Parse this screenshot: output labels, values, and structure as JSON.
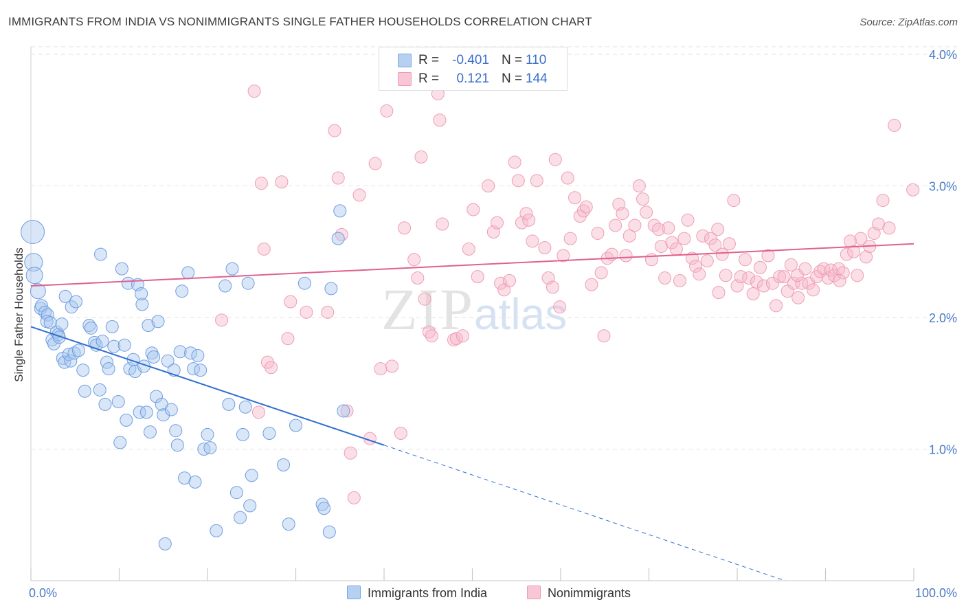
{
  "header": {
    "title": "IMMIGRANTS FROM INDIA VS NONIMMIGRANTS SINGLE FATHER HOUSEHOLDS CORRELATION CHART",
    "source": "Source: ZipAtlas.com"
  },
  "watermark": {
    "zip": "ZIP",
    "atlas": "atlas"
  },
  "legend": {
    "rows": [
      {
        "r_label": "R =",
        "r_value": "-0.401",
        "n_label": "N =",
        "n_value": "110",
        "color": "#a8c8f0"
      },
      {
        "r_label": "R =",
        "r_value": "0.121",
        "n_label": "N =",
        "n_value": "144",
        "color": "#f6b8ca"
      }
    ]
  },
  "bottom_legend": {
    "india": "Immigrants from India",
    "nonimm": "Nonimmigrants"
  },
  "chart_data": {
    "type": "scatter",
    "title": "IMMIGRANTS FROM INDIA VS NONIMMIGRANTS SINGLE FATHER HOUSEHOLDS CORRELATION CHART",
    "ylabel": "Single Father Households",
    "xlabel": "",
    "xlim": [
      0,
      100
    ],
    "ylim": [
      0,
      4.0
    ],
    "x_tick_labels": [
      "0.0%",
      "100.0%"
    ],
    "y_ticks": [
      1.0,
      2.0,
      3.0,
      4.0
    ],
    "y_tick_labels": [
      "1.0%",
      "2.0%",
      "3.0%",
      "4.0%"
    ],
    "grid": true,
    "colors": {
      "india": "#5b8fd9",
      "nonimm": "#ec8aaa",
      "india_line": "#2f6fd0",
      "nonimm_line": "#e0608e"
    },
    "series": [
      {
        "name": "Immigrants from India",
        "trend": {
          "x": [
            0,
            40,
            100
          ],
          "y": [
            1.93,
            1.03,
            -0.33
          ]
        },
        "points": [
          [
            0.2,
            2.65
          ],
          [
            0.3,
            2.42
          ],
          [
            0.4,
            2.32
          ],
          [
            0.8,
            2.2
          ],
          [
            1.1,
            2.07
          ],
          [
            1.2,
            2.09
          ],
          [
            1.6,
            2.04
          ],
          [
            1.9,
            2.02
          ],
          [
            1.8,
            1.97
          ],
          [
            2.2,
            1.96
          ],
          [
            2.4,
            1.83
          ],
          [
            2.6,
            1.8
          ],
          [
            2.9,
            1.89
          ],
          [
            3.1,
            1.87
          ],
          [
            3.2,
            1.85
          ],
          [
            3.5,
            1.95
          ],
          [
            3.6,
            1.69
          ],
          [
            3.8,
            1.66
          ],
          [
            3.9,
            2.16
          ],
          [
            4.3,
            1.72
          ],
          [
            4.5,
            1.67
          ],
          [
            4.6,
            2.08
          ],
          [
            4.9,
            1.73
          ],
          [
            5.1,
            2.12
          ],
          [
            5.4,
            1.75
          ],
          [
            5.9,
            1.6
          ],
          [
            6.1,
            1.44
          ],
          [
            6.6,
            1.94
          ],
          [
            6.8,
            1.92
          ],
          [
            7.2,
            1.81
          ],
          [
            7.4,
            1.79
          ],
          [
            7.8,
            1.45
          ],
          [
            7.9,
            2.48
          ],
          [
            8.1,
            1.82
          ],
          [
            8.4,
            1.34
          ],
          [
            8.6,
            1.66
          ],
          [
            8.8,
            1.61
          ],
          [
            9.2,
            1.93
          ],
          [
            9.4,
            1.78
          ],
          [
            9.9,
            1.36
          ],
          [
            10.1,
            1.05
          ],
          [
            10.3,
            2.37
          ],
          [
            10.6,
            1.79
          ],
          [
            10.8,
            1.22
          ],
          [
            11.0,
            2.26
          ],
          [
            11.2,
            1.61
          ],
          [
            11.6,
            1.68
          ],
          [
            11.8,
            1.59
          ],
          [
            12.1,
            2.25
          ],
          [
            12.3,
            1.28
          ],
          [
            12.6,
            2.1
          ],
          [
            12.5,
            2.18
          ],
          [
            12.8,
            1.63
          ],
          [
            13.1,
            1.28
          ],
          [
            13.3,
            1.94
          ],
          [
            13.5,
            1.13
          ],
          [
            13.7,
            1.73
          ],
          [
            13.9,
            1.7
          ],
          [
            14.2,
            1.4
          ],
          [
            14.4,
            1.97
          ],
          [
            14.8,
            1.34
          ],
          [
            15.0,
            1.26
          ],
          [
            15.2,
            0.28
          ],
          [
            15.5,
            1.67
          ],
          [
            15.9,
            1.3
          ],
          [
            16.2,
            1.6
          ],
          [
            16.4,
            1.14
          ],
          [
            16.6,
            1.03
          ],
          [
            16.9,
            1.74
          ],
          [
            17.1,
            2.2
          ],
          [
            17.4,
            0.78
          ],
          [
            17.8,
            2.34
          ],
          [
            18.1,
            1.73
          ],
          [
            18.4,
            1.61
          ],
          [
            18.6,
            0.75
          ],
          [
            18.9,
            1.71
          ],
          [
            19.2,
            1.6
          ],
          [
            19.6,
            1.0
          ],
          [
            20.0,
            1.11
          ],
          [
            20.3,
            1.01
          ],
          [
            21.0,
            0.38
          ],
          [
            22.0,
            2.24
          ],
          [
            22.4,
            1.34
          ],
          [
            22.8,
            2.37
          ],
          [
            23.3,
            0.67
          ],
          [
            23.7,
            0.48
          ],
          [
            24.0,
            1.11
          ],
          [
            24.3,
            1.32
          ],
          [
            24.6,
            2.26
          ],
          [
            24.8,
            0.57
          ],
          [
            25.0,
            0.8
          ],
          [
            27.0,
            1.12
          ],
          [
            28.6,
            0.88
          ],
          [
            29.2,
            0.43
          ],
          [
            30.0,
            1.18
          ],
          [
            31.0,
            2.26
          ],
          [
            33.0,
            0.58
          ],
          [
            33.2,
            0.55
          ],
          [
            33.8,
            0.37
          ],
          [
            34.0,
            2.22
          ],
          [
            34.8,
            2.6
          ],
          [
            35.0,
            2.81
          ],
          [
            35.4,
            1.29
          ]
        ]
      },
      {
        "name": "Nonimmigrants",
        "trend": {
          "x": [
            0,
            100
          ],
          "y": [
            2.24,
            2.56
          ]
        },
        "points": [
          [
            21.6,
            1.98
          ],
          [
            25.3,
            3.72
          ],
          [
            25.8,
            1.28
          ],
          [
            26.1,
            3.02
          ],
          [
            26.4,
            2.52
          ],
          [
            26.8,
            1.66
          ],
          [
            27.2,
            1.62
          ],
          [
            28.4,
            3.03
          ],
          [
            29.1,
            1.84
          ],
          [
            29.4,
            2.12
          ],
          [
            31.2,
            2.04
          ],
          [
            33.6,
            2.04
          ],
          [
            34.4,
            3.42
          ],
          [
            34.8,
            3.06
          ],
          [
            35.2,
            2.63
          ],
          [
            35.8,
            1.29
          ],
          [
            36.2,
            0.97
          ],
          [
            36.6,
            0.63
          ],
          [
            37.2,
            2.93
          ],
          [
            38.4,
            1.08
          ],
          [
            39.0,
            3.17
          ],
          [
            39.6,
            1.61
          ],
          [
            40.3,
            3.57
          ],
          [
            40.9,
            1.63
          ],
          [
            41.9,
            1.12
          ],
          [
            42.3,
            2.68
          ],
          [
            43.4,
            2.44
          ],
          [
            43.8,
            2.3
          ],
          [
            44.2,
            3.22
          ],
          [
            44.6,
            2.14
          ],
          [
            45.1,
            1.89
          ],
          [
            45.4,
            1.86
          ],
          [
            46.1,
            3.7
          ],
          [
            46.3,
            3.5
          ],
          [
            46.6,
            2.71
          ],
          [
            47.9,
            1.83
          ],
          [
            48.2,
            1.84
          ],
          [
            48.9,
            1.86
          ],
          [
            49.6,
            2.52
          ],
          [
            50.1,
            2.82
          ],
          [
            50.6,
            2.31
          ],
          [
            51.2,
            3.8
          ],
          [
            51.8,
            3.0
          ],
          [
            52.4,
            2.65
          ],
          [
            52.8,
            2.72
          ],
          [
            53.2,
            2.26
          ],
          [
            53.6,
            2.21
          ],
          [
            54.2,
            2.28
          ],
          [
            54.8,
            3.18
          ],
          [
            55.2,
            3.04
          ],
          [
            55.6,
            2.72
          ],
          [
            56.1,
            2.79
          ],
          [
            56.4,
            2.74
          ],
          [
            56.8,
            2.58
          ],
          [
            57.3,
            3.04
          ],
          [
            58.2,
            2.53
          ],
          [
            58.6,
            2.3
          ],
          [
            59.1,
            2.23
          ],
          [
            59.4,
            3.2
          ],
          [
            59.9,
            2.08
          ],
          [
            60.3,
            2.47
          ],
          [
            60.8,
            3.06
          ],
          [
            61.1,
            2.6
          ],
          [
            61.6,
            2.91
          ],
          [
            62.2,
            2.77
          ],
          [
            62.6,
            2.81
          ],
          [
            62.9,
            2.84
          ],
          [
            63.5,
            2.25
          ],
          [
            64.2,
            2.64
          ],
          [
            64.6,
            2.34
          ],
          [
            64.9,
            1.86
          ],
          [
            65.3,
            2.45
          ],
          [
            65.8,
            2.48
          ],
          [
            66.2,
            2.7
          ],
          [
            66.6,
            2.86
          ],
          [
            67.0,
            2.79
          ],
          [
            67.4,
            2.47
          ],
          [
            67.8,
            2.62
          ],
          [
            68.4,
            2.7
          ],
          [
            68.9,
            3.0
          ],
          [
            69.3,
            2.9
          ],
          [
            69.7,
            2.8
          ],
          [
            70.3,
            2.44
          ],
          [
            70.6,
            2.7
          ],
          [
            71.1,
            2.67
          ],
          [
            71.4,
            2.54
          ],
          [
            71.8,
            2.3
          ],
          [
            72.2,
            2.68
          ],
          [
            72.6,
            2.57
          ],
          [
            73.1,
            2.52
          ],
          [
            73.5,
            2.28
          ],
          [
            74.0,
            2.6
          ],
          [
            74.4,
            2.74
          ],
          [
            74.9,
            2.45
          ],
          [
            75.3,
            2.39
          ],
          [
            75.7,
            2.33
          ],
          [
            76.1,
            2.62
          ],
          [
            76.6,
            2.43
          ],
          [
            77.0,
            2.6
          ],
          [
            77.5,
            2.55
          ],
          [
            77.9,
            2.19
          ],
          [
            78.3,
            2.48
          ],
          [
            78.7,
            2.32
          ],
          [
            79.1,
            2.56
          ],
          [
            79.6,
            2.89
          ],
          [
            80.0,
            2.24
          ],
          [
            80.4,
            2.31
          ],
          [
            80.9,
            2.44
          ],
          [
            81.3,
            2.3
          ],
          [
            81.8,
            2.18
          ],
          [
            82.2,
            2.27
          ],
          [
            82.6,
            2.38
          ],
          [
            83.0,
            2.24
          ],
          [
            83.5,
            2.47
          ],
          [
            84.0,
            2.26
          ],
          [
            84.4,
            2.09
          ],
          [
            84.8,
            2.31
          ],
          [
            85.3,
            2.31
          ],
          [
            85.7,
            2.2
          ],
          [
            86.1,
            2.4
          ],
          [
            86.4,
            2.26
          ],
          [
            86.9,
            2.15
          ],
          [
            87.3,
            2.26
          ],
          [
            87.7,
            2.37
          ],
          [
            88.1,
            2.26
          ],
          [
            88.6,
            2.21
          ],
          [
            89.0,
            2.31
          ],
          [
            89.4,
            2.35
          ],
          [
            89.8,
            2.37
          ],
          [
            90.3,
            2.3
          ],
          [
            90.6,
            2.36
          ],
          [
            91.0,
            2.32
          ],
          [
            91.5,
            2.37
          ],
          [
            92.0,
            2.34
          ],
          [
            92.4,
            2.48
          ],
          [
            92.8,
            2.58
          ],
          [
            93.2,
            2.5
          ],
          [
            93.6,
            2.32
          ],
          [
            94.0,
            2.6
          ],
          [
            94.6,
            2.46
          ],
          [
            95.0,
            2.54
          ],
          [
            95.5,
            2.64
          ],
          [
            96.0,
            2.71
          ],
          [
            96.5,
            2.89
          ],
          [
            97.2,
            2.68
          ],
          [
            77.8,
            2.67
          ],
          [
            86.8,
            2.32
          ],
          [
            91.6,
            2.28
          ],
          [
            97.8,
            3.46
          ],
          [
            99.9,
            2.97
          ]
        ]
      }
    ]
  }
}
